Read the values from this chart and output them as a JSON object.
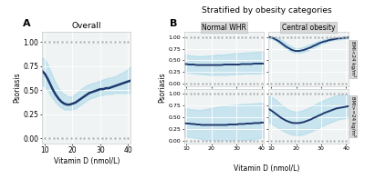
{
  "title_A": "Overall",
  "title_B": "Stratified by obesity categories",
  "xlabel": "Vitamin D (nmol/L)",
  "ylabel": "Psoriasis",
  "x_min": 9,
  "x_max": 41,
  "y_min": -0.05,
  "y_max": 1.1,
  "xticks": [
    10,
    20,
    30,
    40
  ],
  "yticks": [
    0.0,
    0.25,
    0.5,
    0.75,
    1.0
  ],
  "line_color": "#1e3a6e",
  "ci_color": "#a8d8ea",
  "ci_alpha": 0.55,
  "grid_color": "#ffffff",
  "bg_color": "#eff3f3",
  "rug_color": "#b0b0b0",
  "col_labels": [
    "Normal WHR",
    "Central obesity"
  ],
  "row_labels": [
    "BMI<24 kg/m²",
    "BMI>=24 kg/m²"
  ],
  "overall_x": [
    9,
    10,
    11,
    12,
    13,
    14,
    15,
    16,
    17,
    18,
    19,
    20,
    21,
    22,
    23,
    24,
    25,
    26,
    27,
    28,
    29,
    30,
    31,
    32,
    33,
    34,
    35,
    36,
    37,
    38,
    39,
    40,
    41
  ],
  "overall_y": [
    0.7,
    0.67,
    0.62,
    0.56,
    0.5,
    0.45,
    0.41,
    0.38,
    0.36,
    0.35,
    0.35,
    0.36,
    0.37,
    0.39,
    0.41,
    0.43,
    0.45,
    0.47,
    0.48,
    0.49,
    0.5,
    0.51,
    0.51,
    0.52,
    0.52,
    0.53,
    0.54,
    0.55,
    0.56,
    0.57,
    0.58,
    0.59,
    0.6
  ],
  "overall_ci_low": [
    0.56,
    0.54,
    0.5,
    0.45,
    0.41,
    0.37,
    0.34,
    0.32,
    0.3,
    0.3,
    0.3,
    0.3,
    0.31,
    0.33,
    0.35,
    0.37,
    0.39,
    0.41,
    0.42,
    0.43,
    0.44,
    0.45,
    0.45,
    0.46,
    0.46,
    0.46,
    0.47,
    0.47,
    0.47,
    0.47,
    0.47,
    0.47,
    0.47
  ],
  "overall_ci_high": [
    0.84,
    0.82,
    0.77,
    0.7,
    0.63,
    0.57,
    0.52,
    0.48,
    0.46,
    0.44,
    0.43,
    0.44,
    0.46,
    0.48,
    0.51,
    0.53,
    0.55,
    0.56,
    0.57,
    0.58,
    0.59,
    0.6,
    0.61,
    0.62,
    0.63,
    0.63,
    0.64,
    0.65,
    0.67,
    0.68,
    0.7,
    0.72,
    0.75
  ],
  "subplot_data": {
    "nw": {
      "y": [
        0.42,
        0.42,
        0.41,
        0.41,
        0.41,
        0.4,
        0.4,
        0.4,
        0.4,
        0.4,
        0.4,
        0.4,
        0.4,
        0.4,
        0.4,
        0.4,
        0.41,
        0.41,
        0.41,
        0.41,
        0.41,
        0.41,
        0.41,
        0.42,
        0.42,
        0.42,
        0.42,
        0.42,
        0.43,
        0.43,
        0.43,
        0.43,
        0.43
      ],
      "ci_low": [
        0.25,
        0.24,
        0.24,
        0.23,
        0.22,
        0.22,
        0.21,
        0.21,
        0.2,
        0.2,
        0.19,
        0.19,
        0.19,
        0.19,
        0.19,
        0.19,
        0.19,
        0.19,
        0.2,
        0.2,
        0.2,
        0.21,
        0.21,
        0.21,
        0.22,
        0.22,
        0.22,
        0.22,
        0.22,
        0.22,
        0.22,
        0.22,
        0.22
      ],
      "ci_high": [
        0.62,
        0.62,
        0.61,
        0.6,
        0.6,
        0.59,
        0.59,
        0.59,
        0.59,
        0.6,
        0.6,
        0.61,
        0.61,
        0.62,
        0.62,
        0.62,
        0.63,
        0.63,
        0.64,
        0.64,
        0.65,
        0.65,
        0.65,
        0.66,
        0.66,
        0.67,
        0.67,
        0.67,
        0.68,
        0.68,
        0.68,
        0.69,
        0.69
      ]
    },
    "co": {
      "y": [
        1.0,
        0.99,
        0.97,
        0.94,
        0.91,
        0.87,
        0.83,
        0.79,
        0.76,
        0.73,
        0.71,
        0.7,
        0.7,
        0.71,
        0.72,
        0.74,
        0.76,
        0.78,
        0.81,
        0.83,
        0.86,
        0.88,
        0.9,
        0.91,
        0.93,
        0.94,
        0.95,
        0.96,
        0.97,
        0.97,
        0.98,
        0.98,
        0.99
      ],
      "ci_low": [
        0.97,
        0.96,
        0.94,
        0.91,
        0.87,
        0.83,
        0.79,
        0.75,
        0.72,
        0.69,
        0.67,
        0.66,
        0.66,
        0.67,
        0.68,
        0.7,
        0.72,
        0.75,
        0.77,
        0.8,
        0.82,
        0.85,
        0.87,
        0.89,
        0.91,
        0.92,
        0.93,
        0.94,
        0.95,
        0.95,
        0.96,
        0.96,
        0.97
      ],
      "ci_high": [
        1.0,
        1.0,
        1.0,
        1.0,
        0.97,
        0.94,
        0.9,
        0.86,
        0.83,
        0.8,
        0.77,
        0.76,
        0.76,
        0.77,
        0.79,
        0.81,
        0.83,
        0.85,
        0.87,
        0.89,
        0.91,
        0.93,
        0.95,
        0.96,
        0.97,
        0.98,
        0.98,
        0.99,
        0.99,
        0.99,
        1.0,
        1.0,
        1.0
      ]
    },
    "nw2": {
      "y": [
        0.38,
        0.37,
        0.37,
        0.36,
        0.36,
        0.35,
        0.35,
        0.34,
        0.34,
        0.34,
        0.34,
        0.34,
        0.34,
        0.34,
        0.34,
        0.34,
        0.34,
        0.34,
        0.35,
        0.35,
        0.35,
        0.35,
        0.36,
        0.36,
        0.36,
        0.37,
        0.37,
        0.37,
        0.38,
        0.38,
        0.38,
        0.39,
        0.39
      ],
      "ci_low": [
        0.1,
        0.09,
        0.08,
        0.08,
        0.07,
        0.06,
        0.05,
        0.04,
        0.03,
        0.02,
        0.01,
        0.01,
        0.0,
        0.0,
        0.0,
        0.0,
        0.0,
        0.0,
        0.0,
        0.0,
        0.0,
        0.0,
        0.0,
        0.01,
        0.01,
        0.02,
        0.02,
        0.03,
        0.04,
        0.05,
        0.06,
        0.07,
        0.08
      ],
      "ci_high": [
        0.7,
        0.69,
        0.68,
        0.67,
        0.67,
        0.66,
        0.66,
        0.66,
        0.67,
        0.68,
        0.69,
        0.7,
        0.71,
        0.72,
        0.73,
        0.74,
        0.75,
        0.75,
        0.76,
        0.76,
        0.77,
        0.77,
        0.78,
        0.78,
        0.79,
        0.79,
        0.79,
        0.8,
        0.8,
        0.8,
        0.81,
        0.81,
        0.81
      ]
    },
    "co2": {
      "y": [
        0.68,
        0.65,
        0.61,
        0.57,
        0.53,
        0.49,
        0.46,
        0.43,
        0.41,
        0.39,
        0.38,
        0.38,
        0.38,
        0.39,
        0.4,
        0.42,
        0.44,
        0.46,
        0.49,
        0.51,
        0.54,
        0.56,
        0.59,
        0.61,
        0.63,
        0.65,
        0.67,
        0.69,
        0.7,
        0.71,
        0.72,
        0.73,
        0.74
      ],
      "ci_low": [
        0.4,
        0.37,
        0.34,
        0.31,
        0.27,
        0.24,
        0.21,
        0.18,
        0.16,
        0.14,
        0.13,
        0.12,
        0.12,
        0.13,
        0.14,
        0.16,
        0.18,
        0.2,
        0.23,
        0.25,
        0.28,
        0.31,
        0.33,
        0.36,
        0.38,
        0.4,
        0.42,
        0.44,
        0.46,
        0.47,
        0.48,
        0.49,
        0.5
      ],
      "ci_high": [
        0.96,
        0.94,
        0.91,
        0.87,
        0.82,
        0.77,
        0.73,
        0.69,
        0.66,
        0.64,
        0.63,
        0.62,
        0.63,
        0.64,
        0.66,
        0.68,
        0.71,
        0.73,
        0.76,
        0.79,
        0.82,
        0.84,
        0.87,
        0.89,
        0.91,
        0.93,
        0.95,
        0.97,
        0.98,
        0.99,
        1.0,
        1.0,
        1.0
      ]
    }
  }
}
